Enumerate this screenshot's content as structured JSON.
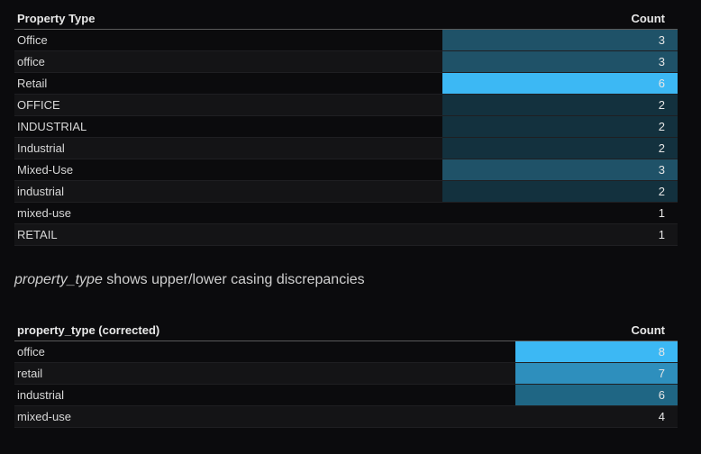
{
  "table1": {
    "header": {
      "label": "Property Type",
      "count": "Count"
    },
    "rows": [
      {
        "label": "Office",
        "count": "3"
      },
      {
        "label": "office",
        "count": "3"
      },
      {
        "label": "Retail",
        "count": "6"
      },
      {
        "label": "OFFICE",
        "count": "2"
      },
      {
        "label": "INDUSTRIAL",
        "count": "2"
      },
      {
        "label": "Industrial",
        "count": "2"
      },
      {
        "label": "Mixed-Use",
        "count": "3"
      },
      {
        "label": "industrial",
        "count": "2"
      },
      {
        "label": "mixed-use",
        "count": "1"
      },
      {
        "label": "RETAIL",
        "count": "1"
      }
    ]
  },
  "caption": {
    "field": "property_type",
    "text": " shows upper/lower casing discrepancies"
  },
  "table2": {
    "header": {
      "label": "property_type (corrected)",
      "count": "Count"
    },
    "rows": [
      {
        "label": "office",
        "count": "8"
      },
      {
        "label": "retail",
        "count": "7"
      },
      {
        "label": "industrial",
        "count": "6"
      },
      {
        "label": "mixed-use",
        "count": "4"
      }
    ]
  },
  "colors": {
    "count_1": "transparent",
    "count_2": "#13313e",
    "count_3": "#1f5268",
    "count_6": "#3cb8f4",
    "corrected_4": "transparent",
    "corrected_6": "#1f6684",
    "corrected_7": "#2e8fbd",
    "corrected_8": "#3cb8f4"
  }
}
